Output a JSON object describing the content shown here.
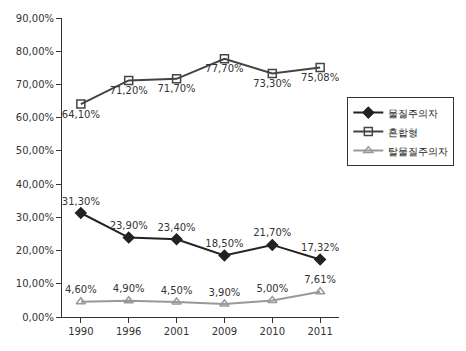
{
  "chart_data": {
    "type": "line",
    "categories": [
      "1990",
      "1996",
      "2001",
      "2009",
      "2010",
      "2011"
    ],
    "series": [
      {
        "name": "물질주의자",
        "color": "#222222",
        "marker": "diamond",
        "line_style": "solid",
        "values": [
          31.3,
          23.9,
          23.4,
          18.5,
          21.7,
          17.32
        ],
        "value_labels": [
          "31,30%",
          "23,90%",
          "23,40%",
          "18,50%",
          "21,70%",
          "17,32%"
        ]
      },
      {
        "name": "혼합형",
        "color": "#444444",
        "marker": "square-open",
        "line_style": "solid",
        "values": [
          64.1,
          71.2,
          71.7,
          77.7,
          73.3,
          75.08
        ],
        "value_labels": [
          "64,10%",
          "71,20%",
          "71,70%",
          "77,70%",
          "73,30%",
          "75,08%"
        ]
      },
      {
        "name": "탈물질주의자",
        "color": "#999999",
        "marker": "triangle-up-open",
        "line_style": "solid",
        "values": [
          4.6,
          4.9,
          4.5,
          3.9,
          5.0,
          7.61
        ],
        "value_labels": [
          "4,60%",
          "4,90%",
          "4,50%",
          "3,90%",
          "5,00%",
          "7,61%"
        ]
      }
    ],
    "ylim": [
      0,
      90
    ],
    "yticks": [
      {
        "value": 0,
        "label": "0,00%"
      },
      {
        "value": 10,
        "label": "10,00%"
      },
      {
        "value": 20,
        "label": "20,00%"
      },
      {
        "value": 30,
        "label": "30,00%"
      },
      {
        "value": 40,
        "label": "40,00%"
      },
      {
        "value": 50,
        "label": "50,00%"
      },
      {
        "value": 60,
        "label": "60,00%"
      },
      {
        "value": 70,
        "label": "70,00%"
      },
      {
        "value": 80,
        "label": "80,00%"
      },
      {
        "value": 90,
        "label": "90,00%"
      }
    ],
    "grid": false,
    "legend": "right",
    "data_labels": true
  }
}
